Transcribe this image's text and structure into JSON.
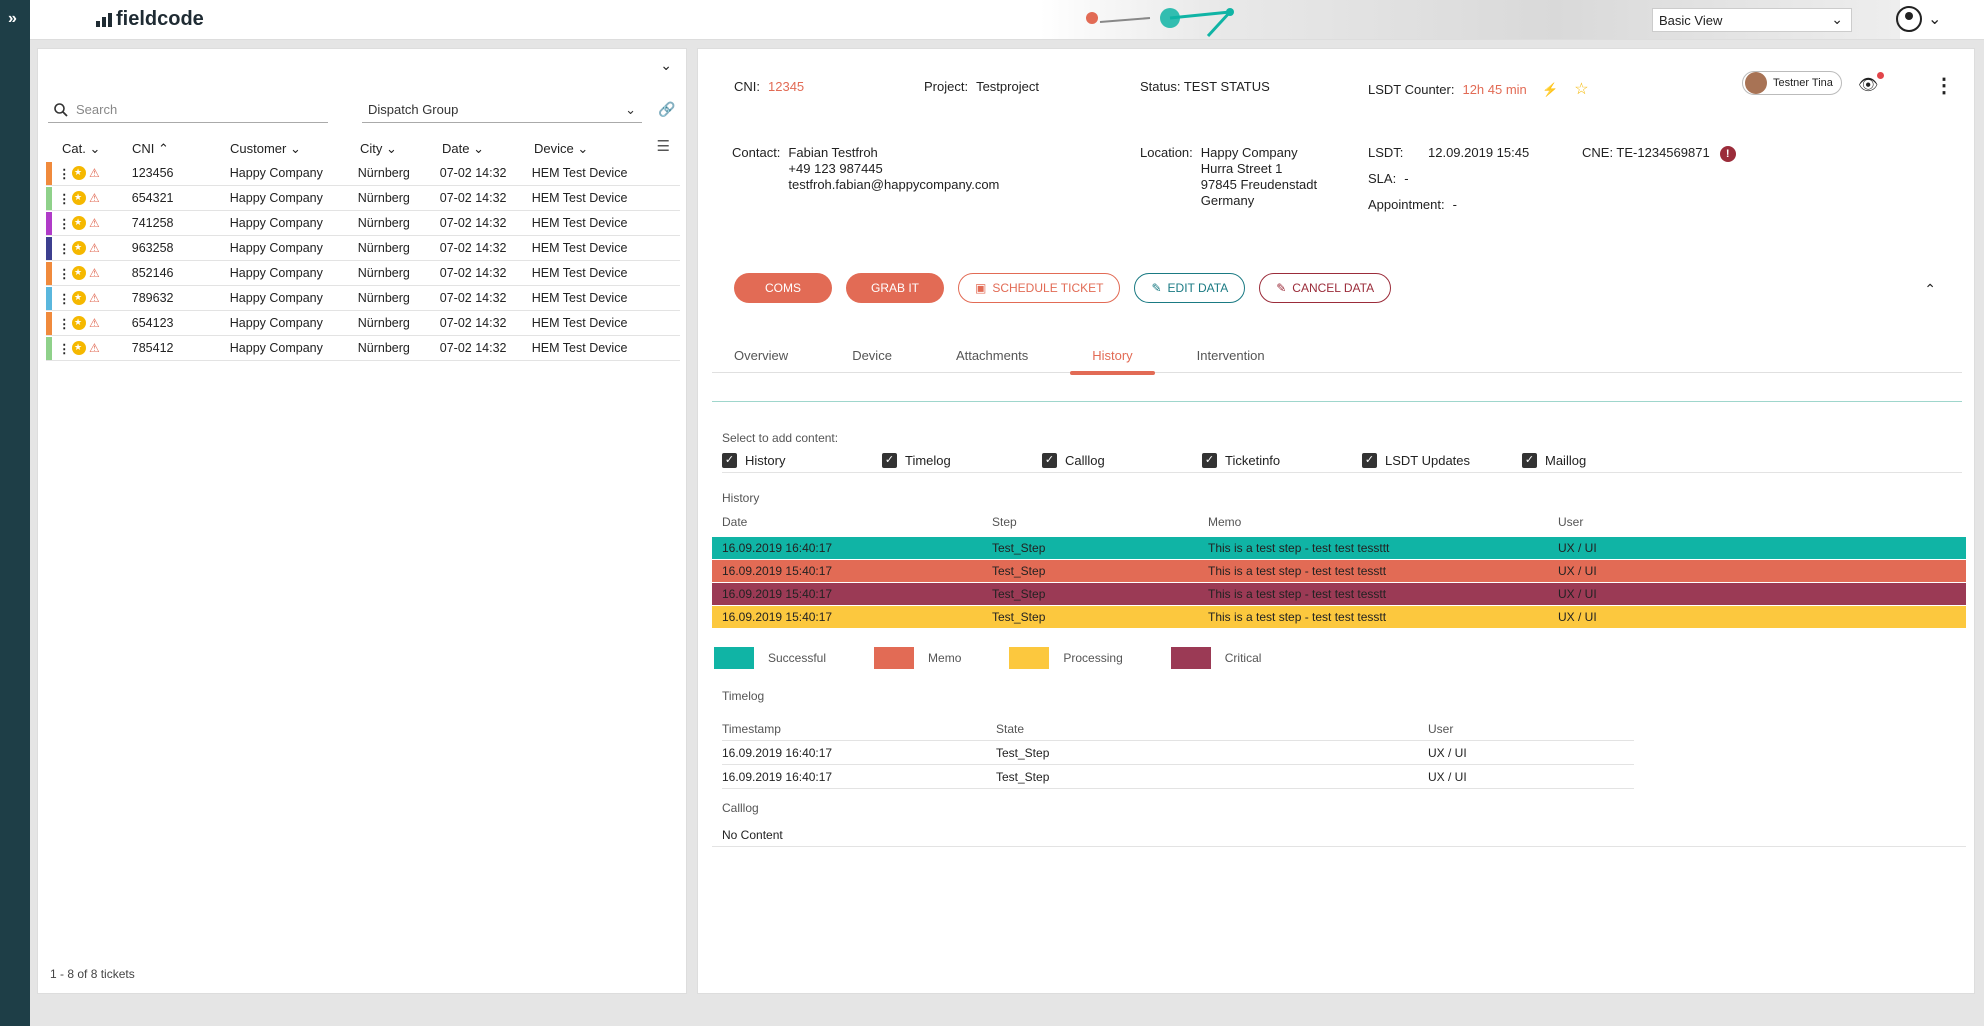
{
  "app": {
    "logo_text": "fieldcode",
    "view_select": "Basic View"
  },
  "left": {
    "search_placeholder": "Search",
    "dispatch_group": "Dispatch Group",
    "columns": {
      "cat": "Cat.",
      "cni": "CNI",
      "customer": "Customer",
      "city": "City",
      "date": "Date",
      "device": "Device"
    },
    "rows": [
      {
        "color": "#f08a3c",
        "cni": "123456",
        "customer": "Happy Company",
        "city": "Nürnberg",
        "date": "07-02 14:32",
        "device": "HEM Test Device"
      },
      {
        "color": "#8fd18a",
        "cni": "654321",
        "customer": "Happy Company",
        "city": "Nürnberg",
        "date": "07-02 14:32",
        "device": "HEM Test Device"
      },
      {
        "color": "#b03bc8",
        "cni": "741258",
        "customer": "Happy Company",
        "city": "Nürnberg",
        "date": "07-02 14:32",
        "device": "HEM Test Device"
      },
      {
        "color": "#3d3f8f",
        "cni": "963258",
        "customer": "Happy Company",
        "city": "Nürnberg",
        "date": "07-02 14:32",
        "device": "HEM Test Device"
      },
      {
        "color": "#f08a3c",
        "cni": "852146",
        "customer": "Happy Company",
        "city": "Nürnberg",
        "date": "07-02 14:32",
        "device": "HEM Test Device"
      },
      {
        "color": "#5ab7dd",
        "cni": "789632",
        "customer": "Happy Company",
        "city": "Nürnberg",
        "date": "07-02 14:32",
        "device": "HEM Test Device"
      },
      {
        "color": "#f08a3c",
        "cni": "654123",
        "customer": "Happy Company",
        "city": "Nürnberg",
        "date": "07-02 14:32",
        "device": "HEM Test Device"
      },
      {
        "color": "#8fd18a",
        "cni": "785412",
        "customer": "Happy Company",
        "city": "Nürnberg",
        "date": "07-02 14:32",
        "device": "HEM Test Device"
      }
    ],
    "footer": "1 - 8 of 8 tickets"
  },
  "ticket": {
    "cni_label": "CNI:",
    "cni": "12345",
    "project_label": "Project:",
    "project": "Testproject",
    "status": "Status: TEST STATUS",
    "lsdt_counter_label": "LSDT Counter:",
    "lsdt_counter": "12h 45 min",
    "owner": "Testner Tina",
    "contact_label": "Contact:",
    "contact_name": "Fabian Testfroh",
    "contact_phone": "+49 123 987445",
    "contact_email": "testfroh.fabian@happycompany.com",
    "location_label": "Location:",
    "loc1": "Happy Company",
    "loc2": "Hurra Street 1",
    "loc3": "97845 Freudenstadt",
    "loc4": "Germany",
    "lsdt_label": "LSDT:",
    "lsdt": "12.09.2019 15:45",
    "sla_label": "SLA:",
    "sla": "-",
    "appointment_label": "Appointment:",
    "appointment": "-",
    "cne": "CNE: TE-1234569871"
  },
  "actions": {
    "coms": "COMS",
    "grabit": "GRAB IT",
    "schedule": "SCHEDULE TICKET",
    "edit": "EDIT DATA",
    "cancel": "CANCEL DATA"
  },
  "tabs": [
    "Overview",
    "Device",
    "Attachments",
    "History",
    "Intervention"
  ],
  "history_panel": {
    "select_label": "Select to add content:",
    "checks": [
      "History",
      "Timelog",
      "Calllog",
      "Ticketinfo",
      "LSDT Updates",
      "Maillog"
    ],
    "history_title": "History",
    "history_cols": [
      "Date",
      "Step",
      "Memo",
      "User"
    ],
    "history_rows": [
      {
        "bg": "#10b4a5",
        "date": "16.09.2019 16:40:17",
        "step": "Test_Step",
        "memo": "This is a test step - test test tessttt",
        "user": "UX / UI"
      },
      {
        "bg": "#e26b55",
        "date": "16.09.2019 15:40:17",
        "step": "Test_Step",
        "memo": "This is a test step - test test tesstt",
        "user": "UX / UI"
      },
      {
        "bg": "#9b3a55",
        "date": "16.09.2019 15:40:17",
        "step": "Test_Step",
        "memo": "This is a test step - test test tesstt",
        "user": "UX / UI"
      },
      {
        "bg": "#fcc83e",
        "date": "16.09.2019 15:40:17",
        "step": "Test_Step",
        "memo": "This is a test step - test test tesstt",
        "user": "UX / UI"
      }
    ],
    "legend": [
      {
        "color": "#10b4a5",
        "label": "Successful"
      },
      {
        "color": "#e26b55",
        "label": "Memo"
      },
      {
        "color": "#fcc83e",
        "label": "Processing"
      },
      {
        "color": "#9b3a55",
        "label": "Critical"
      }
    ],
    "timelog_title": "Timelog",
    "timelog_cols": [
      "Timestamp",
      "State",
      "User"
    ],
    "timelog_rows": [
      {
        "ts": "16.09.2019 16:40:17",
        "state": "Test_Step",
        "user": "UX / UI"
      },
      {
        "ts": "16.09.2019 16:40:17",
        "state": "Test_Step",
        "user": "UX / UI"
      }
    ],
    "calllog_title": "Calllog",
    "calllog_empty": "No Content"
  }
}
